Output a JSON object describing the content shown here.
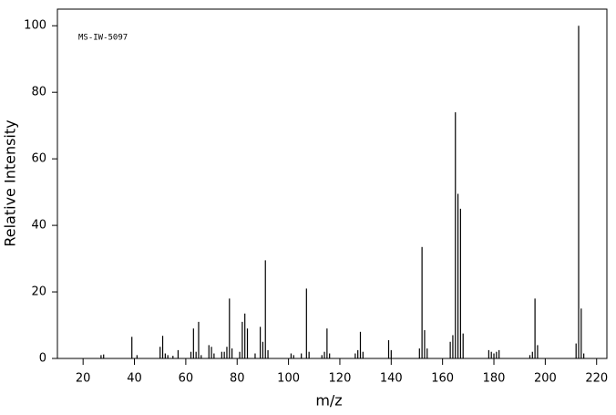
{
  "chart_data": {
    "type": "stem",
    "annotation": "MS-IW-5097",
    "xlabel": "m/z",
    "ylabel": "Relative Intensity",
    "x": [
      27,
      28,
      39,
      41,
      50,
      51,
      52,
      53,
      55,
      57,
      62,
      63,
      64,
      65,
      66,
      69,
      70,
      71,
      74,
      75,
      76,
      77,
      78,
      81,
      82,
      83,
      84,
      87,
      89,
      90,
      91,
      92,
      101,
      102,
      105,
      107,
      108,
      113,
      114,
      115,
      116,
      126,
      127,
      128,
      129,
      139,
      140,
      151,
      152,
      153,
      154,
      163,
      164,
      165,
      166,
      167,
      168,
      178,
      179,
      180,
      181,
      182,
      194,
      195,
      196,
      197,
      212,
      213,
      214,
      215
    ],
    "values": [
      1,
      1.2,
      6.5,
      1,
      3.5,
      6.8,
      1.5,
      1,
      0.8,
      2.5,
      2,
      9,
      2,
      11,
      1,
      4,
      3.5,
      1.5,
      2,
      2,
      3.5,
      18,
      3,
      2,
      11,
      13.5,
      9,
      1.5,
      9.5,
      5,
      29.5,
      2.5,
      1.5,
      1,
      1.5,
      21,
      2,
      1,
      2,
      9,
      1.5,
      1.5,
      2.5,
      8,
      2,
      5.5,
      2.5,
      3,
      33.5,
      8.5,
      3,
      5,
      7,
      74,
      49.5,
      45,
      7.5,
      2.5,
      2,
      1.5,
      2,
      2.5,
      1,
      2,
      18,
      4,
      4.5,
      100,
      15,
      1.5
    ],
    "color": "#000000",
    "xlim": [
      10,
      224
    ],
    "xticks": [
      20,
      40,
      60,
      80,
      100,
      120,
      140,
      160,
      180,
      200,
      220
    ],
    "ylim": [
      0,
      105
    ],
    "yticks": [
      0,
      20,
      40,
      60,
      80,
      100
    ]
  }
}
